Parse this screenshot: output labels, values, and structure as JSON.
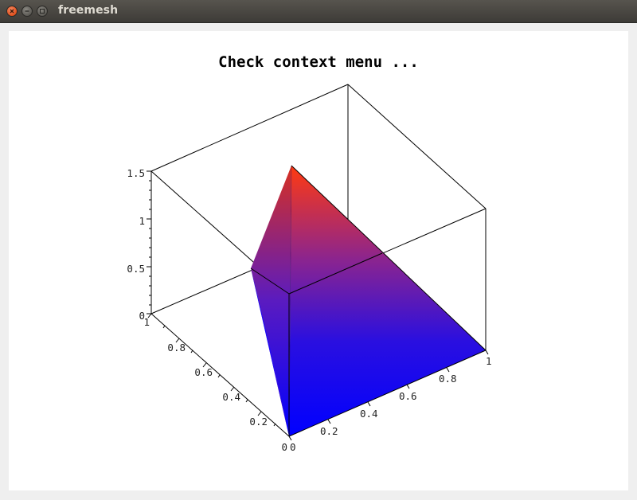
{
  "window": {
    "title": "freemesh",
    "close_icon": "close-icon",
    "minimize_icon": "minimize-icon",
    "maximize_icon": "maximize-icon"
  },
  "plot": {
    "title": "Check context menu ...",
    "surface_colors": {
      "low": "#0000ff",
      "high": "#ff3300"
    },
    "z_ticks": [
      "0",
      "0.5",
      "1",
      "1.5"
    ],
    "x_ticks": [
      "0",
      "0.2",
      "0.4",
      "0.6",
      "0.8",
      "1"
    ],
    "y_ticks": [
      "0",
      "0.2",
      "0.4",
      "0.6",
      "0.8",
      "1"
    ]
  }
}
